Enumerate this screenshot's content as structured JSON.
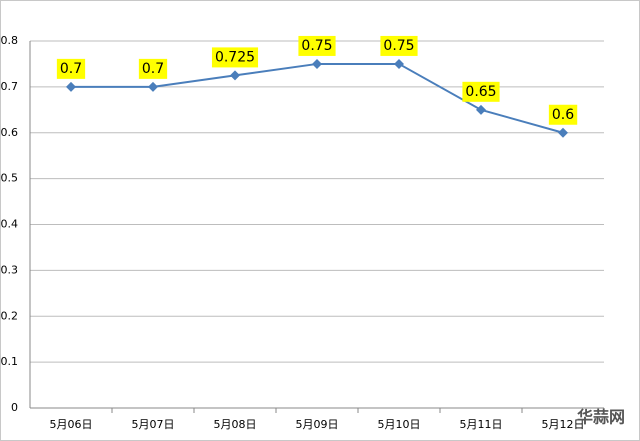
{
  "chart_data": {
    "type": "line",
    "categories": [
      "5月06日",
      "5月07日",
      "5月08日",
      "5月09日",
      "5月10日",
      "5月11日",
      "5月12日"
    ],
    "values": [
      0.7,
      0.7,
      0.725,
      0.75,
      0.75,
      0.65,
      0.6
    ],
    "color": "#4a7ebb",
    "label_background": "#ffff00",
    "ylim": [
      0,
      0.8
    ],
    "yticks": [
      0,
      0.1,
      0.2,
      0.3,
      0.4,
      0.5,
      0.6,
      0.7,
      0.8
    ],
    "grid": true,
    "watermark": "华蒜网"
  }
}
